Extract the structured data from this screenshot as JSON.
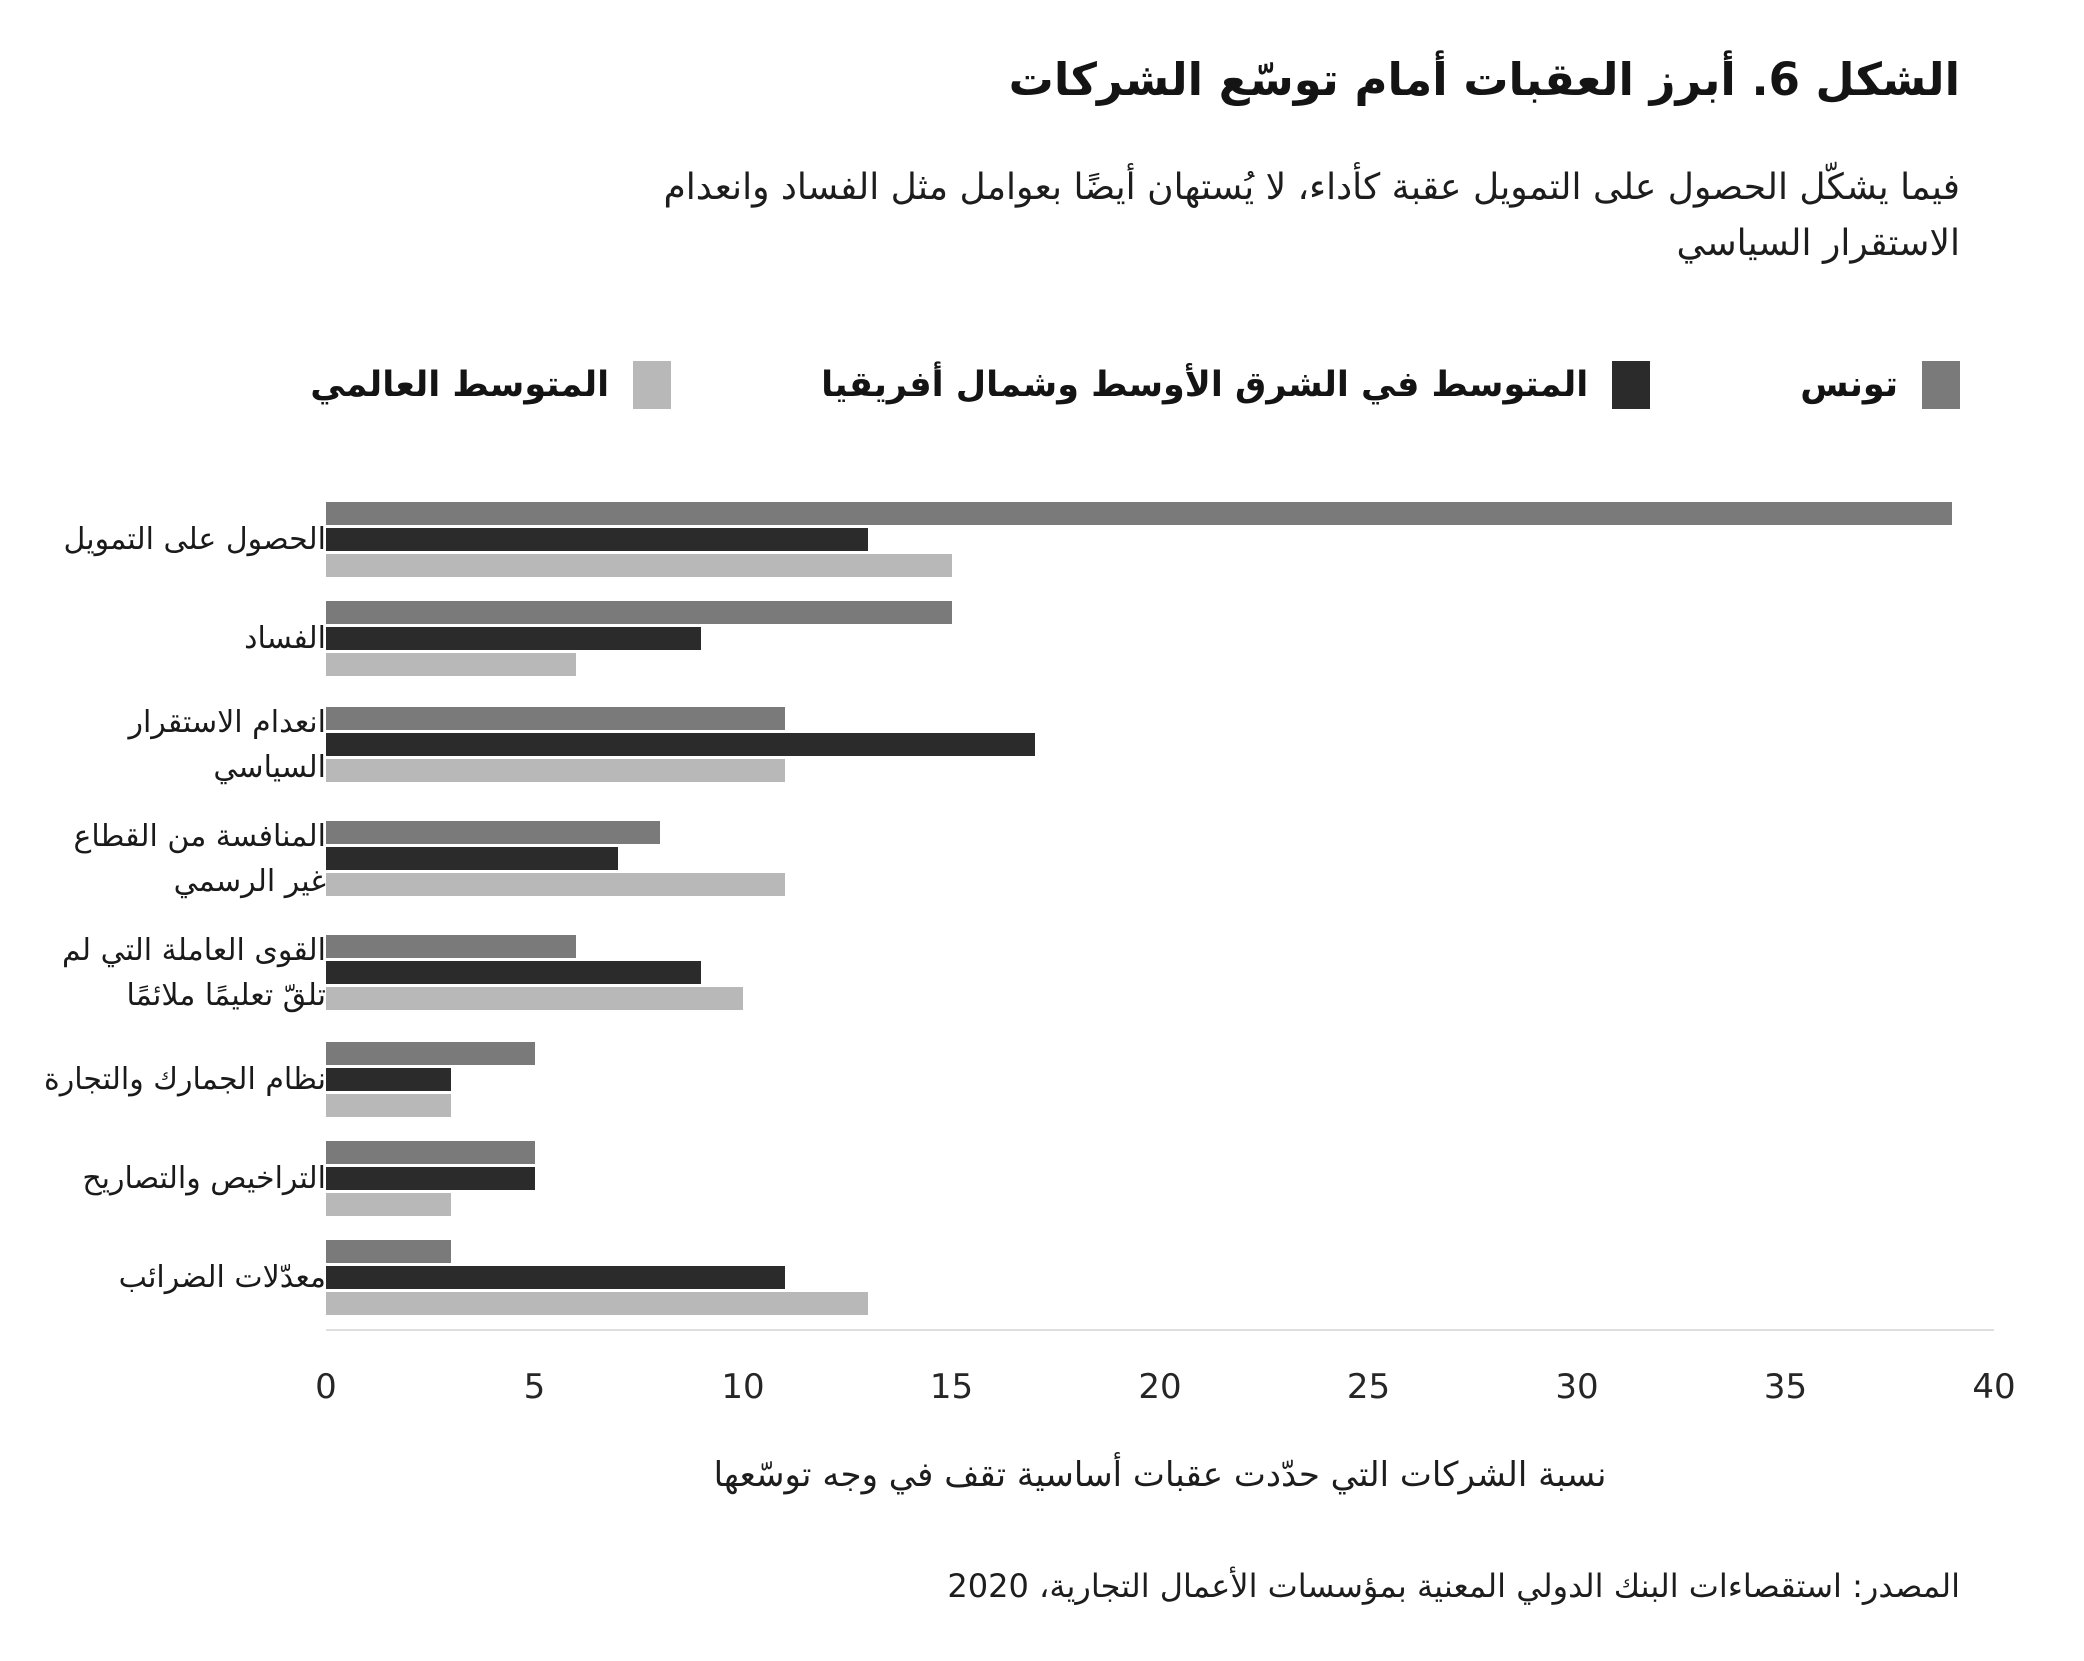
{
  "figure": {
    "title": "الشكل 6. أبرز العقبات أمام توسّع الشركات",
    "subtitle_lines": [
      "فيما يشكّل الحصول على التمويل عقبة كأداء، لا يُستهان أيضًا بعوامل مثل الفساد وانعدام",
      "الاستقرار السياسي"
    ],
    "source": "المصدر: استقصاءات البنك الدولي المعنية بمؤسسات الأعمال التجارية، 2020"
  },
  "legend": [
    {
      "key": "tunisia",
      "label": "تونس",
      "color": "#7a7a7a"
    },
    {
      "key": "mena-average",
      "label": "المتوسط في الشرق الأوسط وشمال أفريقيا",
      "color": "#2b2b2b"
    },
    {
      "key": "world-average",
      "label": "المتوسط العالمي",
      "color": "#b8b8b8"
    }
  ],
  "chart_data": {
    "type": "bar",
    "orientation": "horizontal",
    "title": "الشكل 6. أبرز العقبات أمام توسّع الشركات",
    "xlabel": "نسبة الشركات التي حدّدت عقبات أساسية تقف في وجه توسّعها",
    "ylabel": "",
    "xlim": [
      0,
      40
    ],
    "xticks": [
      0,
      5,
      10,
      15,
      20,
      25,
      30,
      35,
      40
    ],
    "grid": false,
    "legend_position": "top",
    "categories": [
      "الحصول على التمويل",
      "الفساد",
      "انعدام الاستقرار\nالسياسي",
      "المنافسة من القطاع\nغير الرسمي",
      "القوى العاملة التي لم\nتلقّ تعليمًا ملائمًا",
      "نظام الجمارك والتجارة",
      "التراخيص والتصاريح",
      "معدّلات الضرائب"
    ],
    "series": [
      {
        "key": "tunisia",
        "name": "تونس",
        "color": "#7a7a7a",
        "values": [
          39,
          15,
          11,
          8,
          6,
          5,
          5,
          3
        ]
      },
      {
        "key": "mena-average",
        "name": "المتوسط في الشرق الأوسط وشمال أفريقيا",
        "color": "#2b2b2b",
        "values": [
          13,
          9,
          17,
          7,
          9,
          3,
          5,
          11
        ]
      },
      {
        "key": "world-average",
        "name": "المتوسط العالمي",
        "color": "#b8b8b8",
        "values": [
          15,
          6,
          11,
          11,
          10,
          3,
          3,
          13
        ]
      }
    ]
  }
}
